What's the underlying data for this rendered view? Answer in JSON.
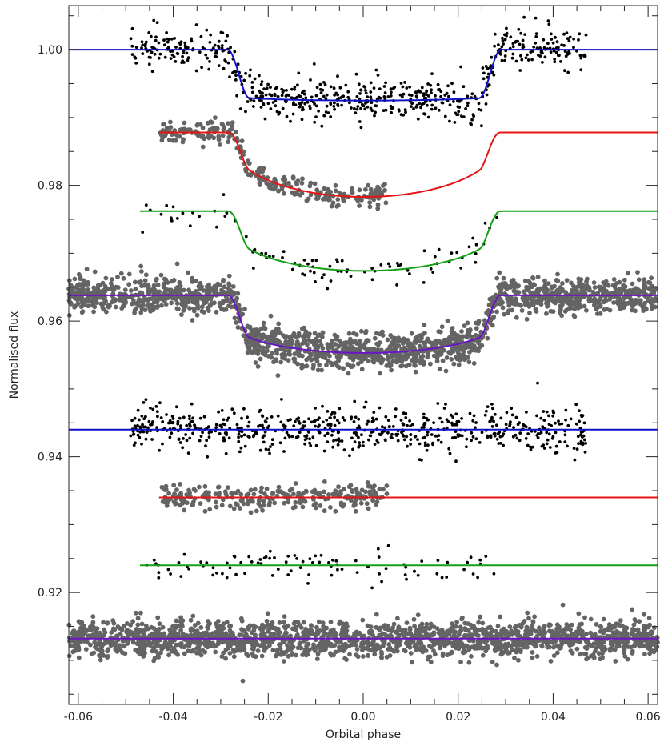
{
  "chart_data": {
    "type": "scatter",
    "xlabel": "Orbital phase",
    "ylabel": "Normalised flux",
    "xlim": [
      -0.062,
      0.062
    ],
    "ylim": [
      0.9035,
      1.0065
    ],
    "x_ticks": [
      -0.06,
      -0.04,
      -0.02,
      0.0,
      0.02,
      0.04,
      0.06
    ],
    "x_tick_labels": [
      "-0.06",
      "-0.04",
      "-0.02",
      "0.00",
      "0.02",
      "0.04",
      "0.06"
    ],
    "y_ticks": [
      0.92,
      0.94,
      0.96,
      0.98,
      1.0
    ],
    "y_tick_labels": [
      "0.92",
      "0.94",
      "0.96",
      "0.98",
      "1.00"
    ],
    "grid": false,
    "colors": {
      "black_points": "#000000",
      "grey_points": "#646464",
      "blue_model": "#1010c8",
      "red_model": "#e61414",
      "green_model": "#14a014",
      "purple_model": "#6a14c8",
      "axes": "#222222"
    },
    "series": [
      {
        "kind": "light_curve",
        "point_color": "black",
        "model_color": "blue",
        "baseline": 1.0,
        "depth": 0.0075,
        "x_range": [
          -0.049,
          0.047
        ],
        "scatter": 0.0016,
        "limb_darkening": 0.1,
        "model_x_range": [
          -0.062,
          0.062
        ]
      },
      {
        "kind": "light_curve",
        "point_color": "grey",
        "model_color": "red",
        "baseline": 0.9878,
        "depth": 0.0095,
        "x_range": [
          -0.043,
          0.005
        ],
        "scatter": 0.0008,
        "limb_darkening": 0.85,
        "model_x_range": [
          -0.043,
          0.062
        ]
      },
      {
        "kind": "light_curve",
        "point_color": "black",
        "model_color": "green",
        "baseline": 0.9762,
        "depth": 0.0088,
        "x_range": [
          -0.047,
          0.029
        ],
        "scatter": 0.0012,
        "limb_darkening": 0.75,
        "model_x_range": [
          -0.047,
          0.062
        ]
      },
      {
        "kind": "light_curve",
        "point_color": "grey",
        "model_color": "purple",
        "baseline": 0.9638,
        "depth": 0.0085,
        "x_range": [
          -0.062,
          0.062
        ],
        "scatter": 0.0013,
        "limb_darkening": 0.55,
        "model_x_range": [
          -0.062,
          0.062
        ]
      },
      {
        "kind": "residuals",
        "point_color": "black",
        "model_color": "blue",
        "baseline": 0.944,
        "x_range": [
          -0.049,
          0.047
        ],
        "scatter": 0.0016,
        "model_x_range": [
          -0.062,
          0.062
        ]
      },
      {
        "kind": "residuals",
        "point_color": "grey",
        "model_color": "red",
        "baseline": 0.934,
        "x_range": [
          -0.043,
          0.005
        ],
        "scatter": 0.0009,
        "model_x_range": [
          -0.043,
          0.062
        ]
      },
      {
        "kind": "residuals",
        "point_color": "black",
        "model_color": "green",
        "baseline": 0.924,
        "x_range": [
          -0.047,
          0.029
        ],
        "scatter": 0.0013,
        "model_x_range": [
          -0.047,
          0.062
        ]
      },
      {
        "kind": "residuals",
        "point_color": "grey",
        "model_color": "purple",
        "baseline": 0.9132,
        "x_range": [
          -0.062,
          0.062
        ],
        "scatter": 0.0013,
        "model_x_range": [
          -0.062,
          0.062
        ]
      }
    ],
    "transit": {
      "ingress_start": -0.0285,
      "full_start": -0.024,
      "full_end": 0.0245,
      "egress_end": 0.029
    }
  }
}
